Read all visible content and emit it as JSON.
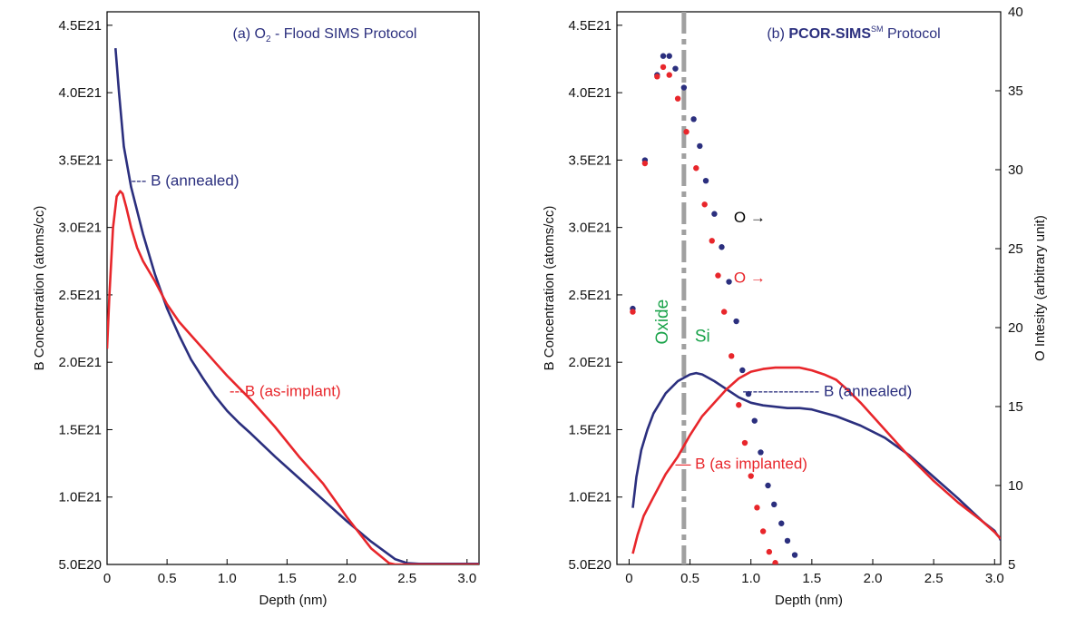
{
  "colors": {
    "annealed": "#2b2f7e",
    "implant": "#e8262b",
    "region": "#1aa34a",
    "marker": "#a0a0a0",
    "title": "#2b2f7e",
    "axis": "#000000"
  },
  "chart_data": [
    {
      "type": "line",
      "title_prefix": "(a) O",
      "title_sub": "2",
      "title_suffix": " - Flood SIMS Protocol",
      "xlabel": "Depth (nm)",
      "ylabel": "B Concentration (atoms/cc)",
      "xlim": [
        0,
        3.1
      ],
      "ylim": [
        5e+20,
        4.6e+21
      ],
      "x_ticks": [
        0,
        0.5,
        1.0,
        1.5,
        2.0,
        2.5,
        3.0
      ],
      "x_tick_labels": [
        "0",
        "0.5",
        "1.0",
        "1.5",
        "2.0",
        "2.5",
        "3.0"
      ],
      "y_ticks": [
        5e+20,
        1e+21,
        1.5e+21,
        2e+21,
        2.5e+21,
        3e+21,
        3.5e+21,
        4e+21,
        4.5e+21
      ],
      "y_tick_labels": [
        "5.0E20",
        "1.0E21",
        "1.5E21",
        "2.0E21",
        "2.5E21",
        "3.0E21",
        "3.5E21",
        "4.0E21",
        "4.5E21"
      ],
      "grid": false,
      "series": [
        {
          "name": "B (annealed)",
          "color_key": "annealed",
          "x": [
            0.07,
            0.1,
            0.14,
            0.2,
            0.3,
            0.4,
            0.5,
            0.6,
            0.7,
            0.8,
            0.9,
            1.0,
            1.1,
            1.2,
            1.4,
            1.6,
            1.8,
            2.0,
            2.2,
            2.4,
            2.5,
            2.6,
            3.1
          ],
          "y": [
            4.33e+21,
            4e+21,
            3.6e+21,
            3.3e+21,
            2.95e+21,
            2.65e+21,
            2.4e+21,
            2.2e+21,
            2.02e+21,
            1.88e+21,
            1.75e+21,
            1.64e+21,
            1.55e+21,
            1.47e+21,
            1.3e+21,
            1.14e+21,
            9.8e+20,
            8.2e+20,
            6.7e+20,
            5.4e+20,
            5.1e+20,
            5.05e+20,
            5.05e+20
          ]
        },
        {
          "name": "B (as-implant)",
          "color_key": "implant",
          "x": [
            0.0,
            0.02,
            0.05,
            0.08,
            0.11,
            0.13,
            0.16,
            0.2,
            0.25,
            0.3,
            0.4,
            0.5,
            0.6,
            0.7,
            0.8,
            0.9,
            1.0,
            1.2,
            1.4,
            1.6,
            1.8,
            2.0,
            2.2,
            2.35,
            2.4,
            3.1
          ],
          "y": [
            2.1e+21,
            2.5e+21,
            3e+21,
            3.23e+21,
            3.27e+21,
            3.25e+21,
            3.15e+21,
            3e+21,
            2.85e+21,
            2.75e+21,
            2.6e+21,
            2.43e+21,
            2.3e+21,
            2.2e+21,
            2.1e+21,
            2e+21,
            1.9e+21,
            1.72e+21,
            1.52e+21,
            1.3e+21,
            1.1e+21,
            8.5e+20,
            6.2e+20,
            5.1e+20,
            5e+20,
            5e+20
          ]
        }
      ],
      "annotations": [
        {
          "text": "--- B (annealed)",
          "x": 0.2,
          "y": 3.35e+21,
          "color_key": "annealed"
        },
        {
          "text": "---B (as-implant)",
          "x": 1.02,
          "y": 1.79e+21,
          "color_key": "implant"
        }
      ]
    },
    {
      "type": "line+scatter",
      "title_prefix": "(b) ",
      "title_bold": "PCOR-SIMS",
      "title_sup": "SM",
      "title_suffix": " Protocol",
      "xlabel": "Depth (nm)",
      "ylabel": "B Concentration (atoms/cc)",
      "y2label": "O Intesity (arbitrary unit)",
      "xlim": [
        -0.1,
        3.05
      ],
      "ylim": [
        5e+20,
        4.6e+21
      ],
      "y2lim": [
        5,
        40
      ],
      "x_ticks": [
        0,
        0.5,
        1.0,
        1.5,
        2.0,
        2.5,
        3.0
      ],
      "x_tick_labels": [
        "0",
        "0.5",
        "1.0",
        "1.5",
        "2.0",
        "2.5",
        "3.0"
      ],
      "y_ticks": [
        5e+20,
        1e+21,
        1.5e+21,
        2e+21,
        2.5e+21,
        3e+21,
        3.5e+21,
        4e+21,
        4.5e+21
      ],
      "y_tick_labels": [
        "5.0E20",
        "1.0E21",
        "1.5E21",
        "2.0E21",
        "2.5E21",
        "3.0E21",
        "3.5E21",
        "4.0E21",
        "4.5E21"
      ],
      "y2_ticks": [
        5,
        10,
        15,
        20,
        25,
        30,
        35,
        40
      ],
      "y2_tick_labels": [
        "5",
        "10",
        "15",
        "20",
        "25",
        "30",
        "35",
        "40"
      ],
      "grid": false,
      "boundary_x": 0.45,
      "regions": [
        "Oxide",
        "Si"
      ],
      "series": [
        {
          "name": "B (annealed)",
          "color_key": "annealed",
          "x": [
            0.03,
            0.06,
            0.1,
            0.15,
            0.2,
            0.3,
            0.4,
            0.5,
            0.55,
            0.6,
            0.7,
            0.8,
            0.9,
            1.0,
            1.1,
            1.2,
            1.3,
            1.4,
            1.5,
            1.7,
            1.9,
            2.1,
            2.3,
            2.5,
            2.7,
            2.9,
            3.0,
            3.02,
            3.04,
            3.05
          ],
          "y": [
            9.2e+20,
            1.15e+21,
            1.35e+21,
            1.5e+21,
            1.62e+21,
            1.77e+21,
            1.86e+21,
            1.91e+21,
            1.92e+21,
            1.91e+21,
            1.86e+21,
            1.8e+21,
            1.74e+21,
            1.7e+21,
            1.68e+21,
            1.67e+21,
            1.66e+21,
            1.66e+21,
            1.65e+21,
            1.6e+21,
            1.53e+21,
            1.44e+21,
            1.31e+21,
            1.15e+21,
            9.9e+20,
            8.2e+20,
            7.5e+20,
            7.2e+20,
            7e+20,
            6.8e+20
          ]
        },
        {
          "name": "B (as implanted)",
          "color_key": "implant",
          "x": [
            0.03,
            0.07,
            0.12,
            0.2,
            0.3,
            0.4,
            0.5,
            0.6,
            0.7,
            0.8,
            0.9,
            1.0,
            1.1,
            1.2,
            1.3,
            1.4,
            1.5,
            1.6,
            1.7,
            1.8,
            1.9,
            2.0,
            2.1,
            2.3,
            2.5,
            2.7,
            2.9,
            3.0,
            3.03,
            3.05
          ],
          "y": [
            5.8e+20,
            7.2e+20,
            8.6e+20,
            1e+21,
            1.17e+21,
            1.3e+21,
            1.46e+21,
            1.6e+21,
            1.7e+21,
            1.8e+21,
            1.88e+21,
            1.93e+21,
            1.95e+21,
            1.96e+21,
            1.96e+21,
            1.96e+21,
            1.94e+21,
            1.91e+21,
            1.87e+21,
            1.79e+21,
            1.7e+21,
            1.6e+21,
            1.5e+21,
            1.3e+21,
            1.12e+21,
            9.6e+20,
            8.2e+20,
            7.4e+20,
            7.1e+20,
            6.9e+20
          ]
        }
      ],
      "oxygen_series": [
        {
          "name": "O (annealed)",
          "color_key": "annealed",
          "x": [
            0.03,
            0.13,
            0.23,
            0.28,
            0.33,
            0.38,
            0.45,
            0.53,
            0.58,
            0.63,
            0.7,
            0.76,
            0.82,
            0.88,
            0.93,
            0.98,
            1.03,
            1.08,
            1.14,
            1.19,
            1.25,
            1.3,
            1.36
          ],
          "y": [
            21.2,
            30.6,
            36.0,
            37.2,
            37.2,
            36.4,
            35.2,
            33.2,
            31.5,
            29.3,
            27.2,
            25.1,
            22.9,
            20.4,
            17.3,
            15.8,
            14.1,
            12.1,
            10.0,
            8.8,
            7.6,
            6.5,
            5.6
          ]
        },
        {
          "name": "O (as implanted)",
          "color_key": "implant",
          "x": [
            0.03,
            0.13,
            0.23,
            0.28,
            0.33,
            0.4,
            0.47,
            0.55,
            0.62,
            0.68,
            0.73,
            0.78,
            0.84,
            0.9,
            0.95,
            1.0,
            1.05,
            1.1,
            1.15,
            1.2
          ],
          "y": [
            21.0,
            30.4,
            35.9,
            36.5,
            36.0,
            34.5,
            32.4,
            30.1,
            27.8,
            25.5,
            23.3,
            21.0,
            18.2,
            15.1,
            12.7,
            10.6,
            8.6,
            7.1,
            5.8,
            5.1
          ]
        }
      ],
      "annotations": [
        {
          "text": "O →",
          "x": 0.86,
          "y2": 27.0,
          "color_key": "axis"
        },
        {
          "text": "O →",
          "x": 0.86,
          "y2": 23.2,
          "color_key": "implant"
        },
        {
          "text": "--------------- B (annealed)",
          "x": 0.93,
          "y": 1.79e+21,
          "color_key": "annealed"
        },
        {
          "text": "— B (as implanted)",
          "x": 0.38,
          "y": 1.25e+21,
          "color_key": "implant"
        }
      ]
    }
  ]
}
